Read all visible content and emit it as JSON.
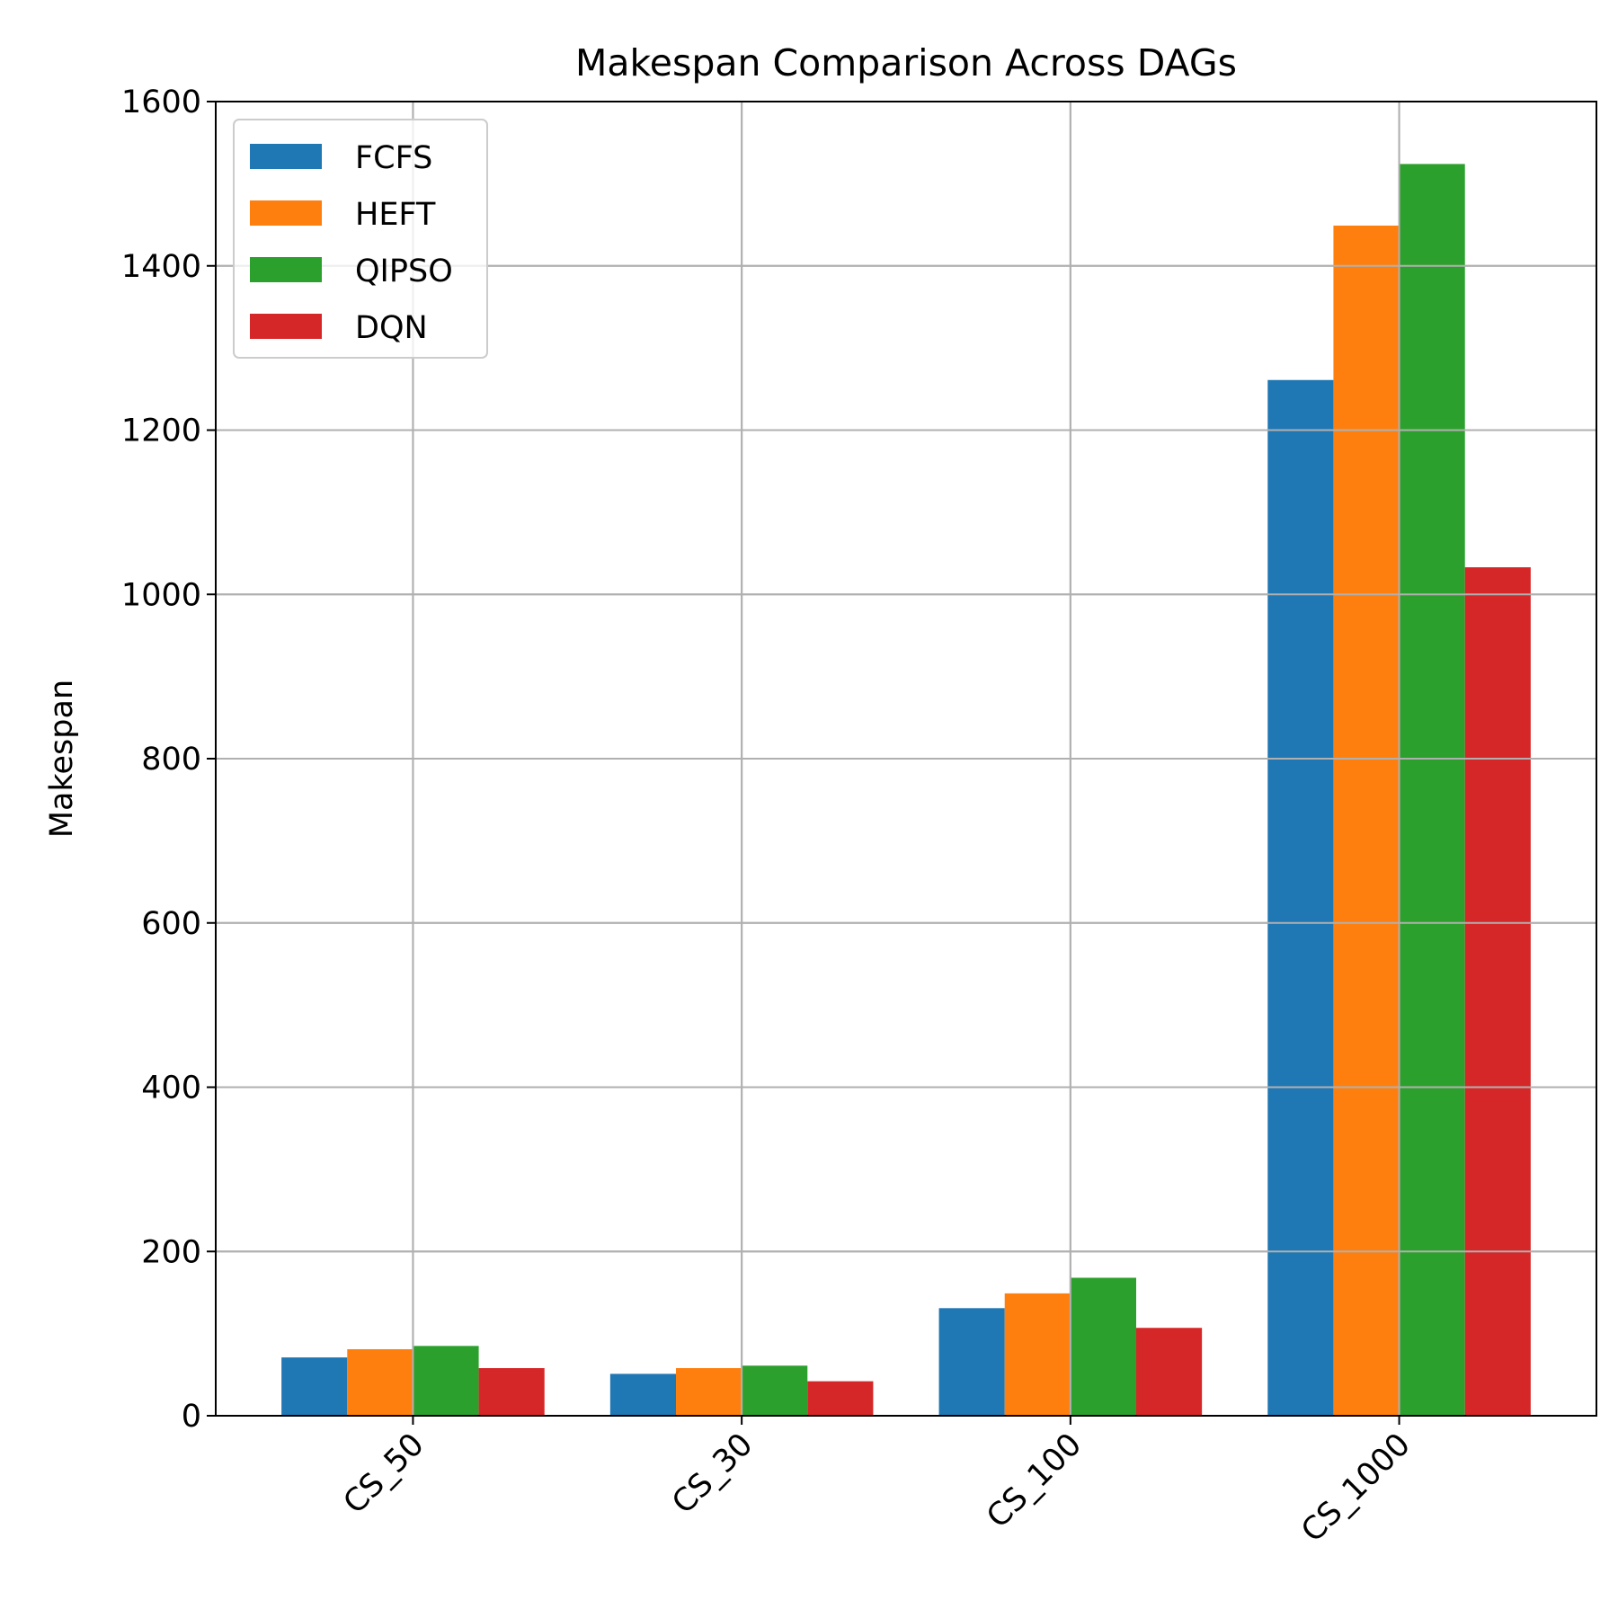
{
  "chart_data": {
    "type": "bar",
    "title": "Makespan Comparison Across DAGs",
    "xlabel": "",
    "ylabel": "Makespan",
    "categories": [
      "CS_50",
      "CS_30",
      "CS_100",
      "CS_1000"
    ],
    "series": [
      {
        "name": "FCFS",
        "color": "#1f77b4",
        "values": [
          71,
          51,
          131,
          1261
        ]
      },
      {
        "name": "HEFT",
        "color": "#ff7f0e",
        "values": [
          81,
          58,
          149,
          1449
        ]
      },
      {
        "name": "QIPSO",
        "color": "#2ca02c",
        "values": [
          85,
          61,
          168,
          1524
        ]
      },
      {
        "name": "DQN",
        "color": "#d62728",
        "values": [
          58,
          42,
          107,
          1033
        ]
      }
    ],
    "ylim": [
      0,
      1600
    ],
    "yticks": [
      0,
      200,
      400,
      600,
      800,
      1000,
      1200,
      1400,
      1600
    ],
    "grid": true,
    "legend_position": "top-left",
    "xtick_rotation": 45
  }
}
